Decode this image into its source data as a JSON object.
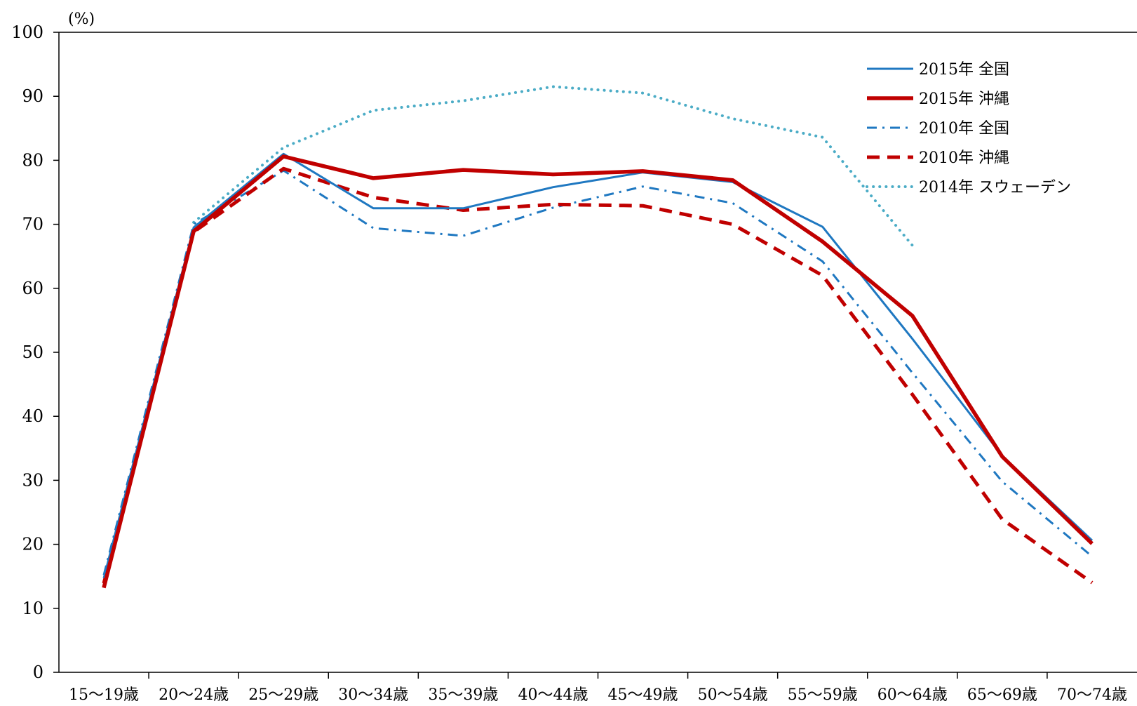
{
  "chart_data": {
    "type": "line",
    "title": "",
    "unit_label": "(%)",
    "xlabel": "",
    "ylabel": "",
    "ylim": [
      0,
      100
    ],
    "y_ticks": [
      0,
      10,
      20,
      30,
      40,
      50,
      60,
      70,
      80,
      90,
      100
    ],
    "grid": false,
    "legend_position": "top-right",
    "categories": [
      "15～19歳",
      "20～24歳",
      "25～29歳",
      "30～34歳",
      "35～39歳",
      "40～44歳",
      "45～49歳",
      "50～54歳",
      "55～59歳",
      "60～64歳",
      "65～69歳",
      "70～74歳"
    ],
    "series": [
      {
        "name": "2015年 全国",
        "color": "#1f78c1",
        "style": "solid",
        "values": [
          14.7,
          69.5,
          81.0,
          72.5,
          72.5,
          75.8,
          78.1,
          76.6,
          69.6,
          52.1,
          33.8,
          20.6
        ]
      },
      {
        "name": "2015年 沖縄",
        "color": "#c00000",
        "style": "solid-thick",
        "values": [
          13.2,
          68.9,
          80.6,
          77.2,
          78.5,
          77.8,
          78.3,
          76.9,
          67.3,
          55.7,
          33.7,
          20.1
        ]
      },
      {
        "name": "2010年 全国",
        "color": "#1f78c1",
        "style": "dashdot",
        "values": [
          15.2,
          70.0,
          78.4,
          69.4,
          68.2,
          72.6,
          75.9,
          73.3,
          64.2,
          46.8,
          29.8,
          18.1
        ]
      },
      {
        "name": "2010年 沖縄",
        "color": "#c00000",
        "style": "dashed",
        "values": [
          13.9,
          68.8,
          78.7,
          74.2,
          72.2,
          73.1,
          72.9,
          70.0,
          62.0,
          43.4,
          23.9,
          14.0
        ]
      },
      {
        "name": "2014年 スウェーデン",
        "color": "#4bacc6",
        "style": "dotted",
        "values": [
          null,
          70.3,
          82.0,
          87.8,
          89.3,
          91.5,
          90.5,
          86.5,
          83.6,
          66.7,
          null,
          null
        ]
      }
    ]
  }
}
